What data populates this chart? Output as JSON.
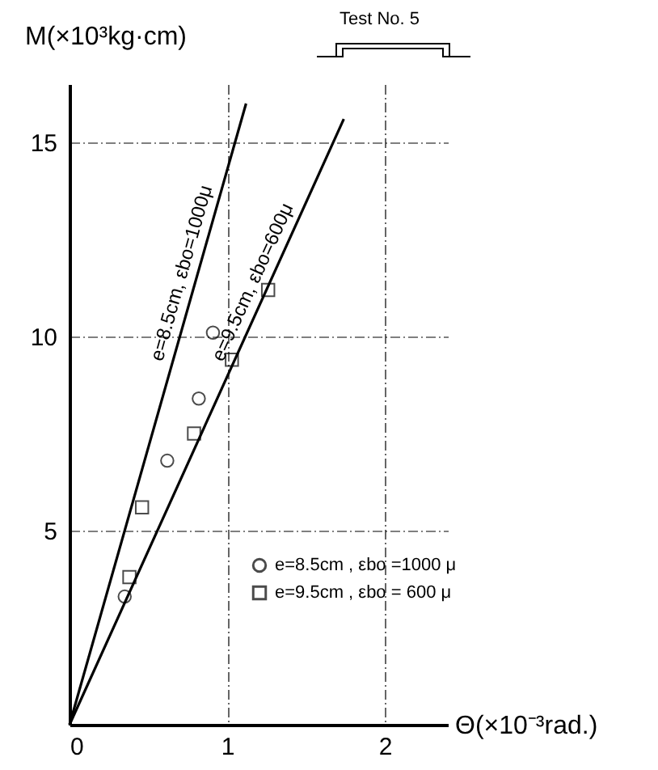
{
  "chart_data": {
    "type": "scatter",
    "title": "Test No. 5",
    "xlabel": "Θ(×10⁻³rad.)",
    "ylabel": "M(×10³kg·cm)",
    "xlim": [
      0,
      2.4
    ],
    "ylim": [
      0,
      16.5
    ],
    "xticks": [
      0,
      1,
      2
    ],
    "yticks": [
      5,
      10,
      15
    ],
    "grid": true,
    "legend": "bottom right",
    "series": [
      {
        "name": "e=8.5cm , εbo =1000 μ",
        "type": "scatter",
        "marker": "circle",
        "color": "#000000",
        "x": [
          0.35,
          0.62,
          0.82,
          0.91
        ],
        "values": [
          3.3,
          6.8,
          8.4,
          10.1
        ]
      },
      {
        "name": "e=9.5cm , εbo = 600 μ",
        "type": "scatter",
        "marker": "square",
        "color": "#000000",
        "x": [
          0.38,
          0.46,
          0.79,
          1.03,
          1.26
        ],
        "values": [
          3.8,
          5.6,
          7.5,
          9.4,
          11.2
        ]
      },
      {
        "name": "e=8.5cm, εbo=1000μ",
        "type": "line",
        "color": "#000000",
        "x": [
          0,
          1.12
        ],
        "values": [
          0,
          16.0
        ]
      },
      {
        "name": "e=9.5cm, εbo=600μ",
        "type": "line",
        "color": "#000000",
        "x": [
          0,
          1.74
        ],
        "values": [
          0,
          15.6
        ]
      }
    ]
  }
}
